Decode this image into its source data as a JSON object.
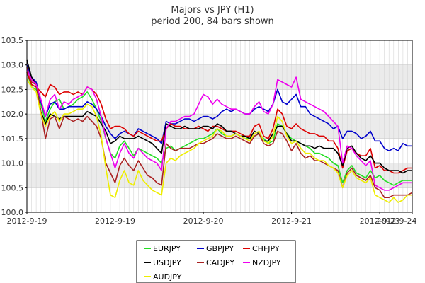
{
  "chart_data": {
    "type": "line",
    "title": "Majors vs JPY (H1)",
    "subtitle": "period 200, 84 bars shown",
    "xlabel": "",
    "ylabel": "",
    "ylim": [
      100.0,
      103.5
    ],
    "yticks": [
      "100.0",
      "100.5",
      "101.0",
      "101.5",
      "102.0",
      "102.5",
      "103.0",
      "103.5"
    ],
    "xtick_labels": [
      "2012-9-19",
      "2012-9-19",
      "2012-9-20",
      "2012-9-21",
      "2012-9-23",
      "2012-9-24"
    ],
    "xtick_index": [
      0,
      19,
      38,
      57,
      76,
      83
    ],
    "grid": true,
    "legend_position": "bottom",
    "series": [
      {
        "name": "EURJPY",
        "color": "#22dd22",
        "values": [
          102.85,
          102.55,
          102.5,
          102.2,
          101.85,
          102.1,
          102.25,
          102.3,
          102.1,
          102.15,
          102.2,
          102.3,
          102.35,
          102.45,
          102.3,
          102.1,
          101.85,
          101.5,
          101.2,
          101.1,
          101.35,
          101.45,
          101.3,
          101.15,
          101.3,
          101.25,
          101.2,
          101.15,
          101.1,
          101.0,
          101.3,
          101.35,
          101.25,
          101.3,
          101.35,
          101.4,
          101.45,
          101.5,
          101.5,
          101.55,
          101.6,
          101.7,
          101.6,
          101.55,
          101.55,
          101.6,
          101.55,
          101.5,
          101.5,
          101.55,
          101.6,
          101.5,
          101.4,
          101.45,
          101.8,
          101.75,
          101.6,
          101.5,
          101.45,
          101.4,
          101.35,
          101.3,
          101.2,
          101.2,
          101.15,
          101.1,
          101.0,
          100.95,
          100.6,
          100.85,
          100.95,
          100.8,
          100.75,
          100.7,
          100.85,
          100.7,
          100.75,
          100.65,
          100.6,
          100.55,
          100.6,
          100.65,
          100.65,
          100.65
        ]
      },
      {
        "name": "GBPJPY",
        "color": "#0000cc",
        "values": [
          103.0,
          102.75,
          102.65,
          102.25,
          101.95,
          102.2,
          102.25,
          102.1,
          102.1,
          102.15,
          102.15,
          102.15,
          102.15,
          102.25,
          102.2,
          102.1,
          101.95,
          101.75,
          101.6,
          101.5,
          101.6,
          101.65,
          101.6,
          101.55,
          101.7,
          101.65,
          101.6,
          101.55,
          101.5,
          101.4,
          101.85,
          101.8,
          101.8,
          101.85,
          101.9,
          101.9,
          101.85,
          101.9,
          101.95,
          101.95,
          101.9,
          101.95,
          102.05,
          102.1,
          102.05,
          102.1,
          102.05,
          102.0,
          102.0,
          102.1,
          102.15,
          102.1,
          102.05,
          102.2,
          102.5,
          102.25,
          102.2,
          102.3,
          102.4,
          102.15,
          102.15,
          102.0,
          101.95,
          101.9,
          101.85,
          101.8,
          101.7,
          101.75,
          101.5,
          101.65,
          101.65,
          101.6,
          101.5,
          101.55,
          101.65,
          101.45,
          101.45,
          101.3,
          101.25,
          101.3,
          101.25,
          101.4,
          101.35,
          101.35
        ]
      },
      {
        "name": "CHFJPY",
        "color": "#dd0000",
        "values": [
          102.85,
          102.6,
          102.55,
          102.45,
          102.35,
          102.6,
          102.55,
          102.4,
          102.45,
          102.45,
          102.4,
          102.45,
          102.4,
          102.55,
          102.5,
          102.4,
          102.2,
          101.9,
          101.7,
          101.75,
          101.75,
          101.7,
          101.6,
          101.55,
          101.65,
          101.6,
          101.55,
          101.5,
          101.45,
          101.45,
          101.7,
          101.8,
          101.75,
          101.75,
          101.7,
          101.7,
          101.7,
          101.75,
          101.7,
          101.65,
          101.75,
          101.75,
          101.7,
          101.65,
          101.65,
          101.65,
          101.6,
          101.55,
          101.55,
          101.75,
          101.8,
          101.55,
          101.5,
          101.7,
          102.1,
          102.0,
          101.75,
          101.7,
          101.8,
          101.7,
          101.65,
          101.6,
          101.6,
          101.55,
          101.55,
          101.45,
          101.45,
          101.3,
          100.9,
          101.25,
          101.3,
          101.2,
          101.15,
          101.15,
          101.3,
          100.9,
          100.95,
          100.85,
          100.85,
          100.8,
          100.8,
          100.85,
          100.9,
          100.9
        ]
      },
      {
        "name": "USDJPY",
        "color": "#000000",
        "values": [
          103.1,
          102.75,
          102.6,
          102.05,
          101.8,
          102.0,
          101.95,
          101.9,
          101.95,
          101.95,
          101.95,
          101.95,
          101.95,
          102.05,
          102.0,
          101.95,
          101.8,
          101.65,
          101.4,
          101.45,
          101.55,
          101.5,
          101.5,
          101.5,
          101.55,
          101.5,
          101.45,
          101.4,
          101.3,
          101.2,
          101.8,
          101.75,
          101.7,
          101.7,
          101.75,
          101.7,
          101.7,
          101.7,
          101.75,
          101.75,
          101.7,
          101.8,
          101.75,
          101.65,
          101.65,
          101.6,
          101.55,
          101.55,
          101.5,
          101.65,
          101.6,
          101.45,
          101.45,
          101.6,
          101.75,
          101.75,
          101.6,
          101.45,
          101.45,
          101.4,
          101.35,
          101.35,
          101.3,
          101.35,
          101.3,
          101.3,
          101.3,
          101.2,
          100.95,
          101.3,
          101.35,
          101.2,
          101.1,
          101.05,
          101.15,
          101.0,
          101.0,
          100.9,
          100.85,
          100.85,
          100.85,
          100.8,
          100.85,
          100.85
        ]
      },
      {
        "name": "CADJPY",
        "color": "#aa2222",
        "values": [
          102.95,
          102.65,
          102.6,
          102.05,
          101.5,
          101.9,
          101.95,
          101.7,
          101.95,
          101.9,
          101.85,
          101.9,
          101.85,
          101.95,
          101.85,
          101.75,
          101.5,
          101.0,
          100.8,
          100.6,
          100.95,
          101.1,
          100.95,
          100.85,
          101.05,
          100.9,
          100.75,
          100.7,
          100.6,
          100.55,
          101.4,
          101.3,
          101.25,
          101.3,
          101.3,
          101.3,
          101.35,
          101.4,
          101.4,
          101.45,
          101.5,
          101.6,
          101.55,
          101.5,
          101.5,
          101.55,
          101.5,
          101.45,
          101.4,
          101.55,
          101.6,
          101.4,
          101.35,
          101.4,
          101.65,
          101.6,
          101.45,
          101.25,
          101.4,
          101.2,
          101.1,
          101.15,
          101.05,
          101.05,
          101.0,
          100.95,
          100.9,
          100.85,
          100.5,
          100.8,
          100.9,
          100.75,
          100.7,
          100.65,
          100.75,
          100.5,
          100.45,
          100.3,
          100.3,
          100.35,
          100.35,
          100.35,
          100.35,
          100.4
        ]
      },
      {
        "name": "NZDJPY",
        "color": "#ee00ee",
        "values": [
          102.9,
          102.7,
          102.6,
          102.3,
          101.95,
          102.3,
          102.4,
          102.1,
          102.25,
          102.2,
          102.3,
          102.35,
          102.4,
          102.55,
          102.5,
          102.3,
          101.95,
          101.5,
          101.2,
          100.9,
          101.2,
          101.4,
          101.2,
          101.1,
          101.3,
          101.2,
          101.1,
          101.05,
          101.0,
          100.85,
          101.7,
          101.85,
          101.85,
          101.9,
          101.95,
          101.95,
          102.0,
          102.2,
          102.4,
          102.35,
          102.2,
          102.3,
          102.2,
          102.15,
          102.1,
          102.1,
          102.05,
          102.0,
          102.0,
          102.15,
          102.25,
          102.05,
          102.0,
          102.2,
          102.7,
          102.65,
          102.6,
          102.55,
          102.75,
          102.3,
          102.25,
          102.2,
          102.15,
          102.1,
          102.05,
          101.95,
          101.85,
          101.75,
          101.0,
          101.35,
          101.3,
          101.15,
          101.05,
          100.95,
          101.05,
          100.55,
          100.5,
          100.45,
          100.45,
          100.5,
          100.55,
          100.6,
          100.6,
          100.6
        ]
      },
      {
        "name": "AUDJPY",
        "color": "#eeee00",
        "values": [
          102.7,
          102.55,
          102.45,
          102.0,
          101.75,
          101.95,
          102.05,
          101.85,
          102.0,
          102.0,
          102.05,
          102.1,
          102.1,
          102.2,
          102.15,
          101.95,
          101.55,
          100.9,
          100.35,
          100.3,
          100.65,
          100.85,
          100.6,
          100.55,
          100.85,
          100.65,
          100.55,
          100.45,
          100.4,
          100.35,
          101.0,
          101.1,
          101.05,
          101.15,
          101.2,
          101.25,
          101.3,
          101.4,
          101.45,
          101.5,
          101.55,
          101.7,
          101.65,
          101.55,
          101.55,
          101.6,
          101.55,
          101.5,
          101.45,
          101.6,
          101.65,
          101.45,
          101.4,
          101.55,
          101.95,
          101.85,
          101.55,
          101.4,
          101.45,
          101.3,
          101.2,
          101.2,
          101.1,
          101.05,
          101.05,
          100.95,
          100.9,
          100.8,
          100.5,
          100.75,
          100.85,
          100.7,
          100.65,
          100.6,
          100.7,
          100.35,
          100.3,
          100.25,
          100.2,
          100.3,
          100.2,
          100.25,
          100.35,
          100.35
        ]
      }
    ]
  }
}
